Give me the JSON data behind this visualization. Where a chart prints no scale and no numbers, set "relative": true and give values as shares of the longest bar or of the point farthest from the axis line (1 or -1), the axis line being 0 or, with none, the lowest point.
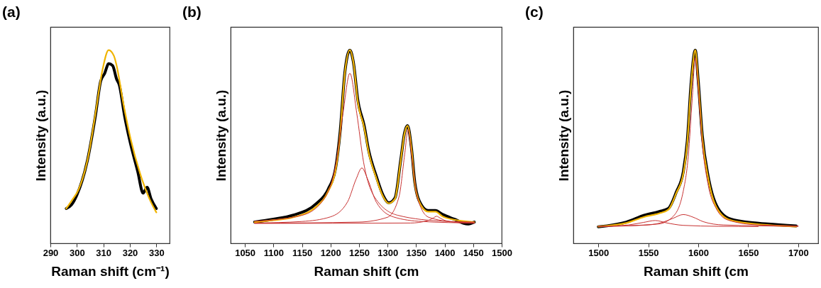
{
  "chart_data": [
    {
      "type": "line",
      "title": "(a)",
      "xlabel": "Raman shift (cm⁻¹)",
      "ylabel": "Intensity (a.u.)",
      "relative": true,
      "xlim": [
        290,
        335
      ],
      "xticks": [
        290,
        300,
        310,
        320,
        330
      ],
      "series": [
        {
          "color": "#000000",
          "x": [
            296,
            298,
            300,
            304,
            307,
            309,
            310.5,
            312,
            313.5,
            315,
            316,
            318,
            320,
            323,
            325,
            326.5,
            328,
            330
          ],
          "values": [
            0.18,
            0.2,
            0.25,
            0.43,
            0.66,
            0.84,
            0.88,
            0.93,
            0.92,
            0.85,
            0.82,
            0.66,
            0.53,
            0.37,
            0.26,
            0.29,
            0.23,
            0.18
          ]
        },
        {
          "color": "#f0b400",
          "x": [
            296,
            298,
            300.7,
            304.3,
            307,
            309.7,
            312,
            314,
            315,
            317.6,
            320.3,
            323.9,
            327.4,
            330
          ],
          "values": [
            0.18,
            0.22,
            0.28,
            0.45,
            0.67,
            0.9,
            1,
            0.97,
            0.92,
            0.72,
            0.54,
            0.36,
            0.23,
            0.16
          ]
        }
      ]
    },
    {
      "type": "line",
      "title": "(b)",
      "xlabel": "Raman shift (cm",
      "ylabel": "Intensity (a.u.)",
      "relative": true,
      "xlim": [
        1025,
        1500
      ],
      "xticks": [
        1050,
        1100,
        1150,
        1200,
        1250,
        1300,
        1350,
        1400,
        1450,
        1500
      ],
      "series": [
        {
          "color": "#000000",
          "x": [
            1067,
            1100,
            1134,
            1175,
            1196,
            1209,
            1217,
            1225,
            1234,
            1240,
            1248,
            1259,
            1267,
            1280,
            1292,
            1302,
            1313,
            1323,
            1330,
            1335,
            1342,
            1348,
            1359,
            1371,
            1384,
            1396,
            1417,
            1440,
            1452
          ],
          "values": [
            0.11,
            0.125,
            0.145,
            0.205,
            0.28,
            0.39,
            0.58,
            0.88,
            1,
            0.94,
            0.74,
            0.61,
            0.48,
            0.35,
            0.25,
            0.21,
            0.235,
            0.43,
            0.575,
            0.61,
            0.49,
            0.31,
            0.2,
            0.17,
            0.17,
            0.15,
            0.125,
            0.1,
            0.11
          ]
        },
        {
          "color": "#f0b400",
          "x": [
            1067,
            1100,
            1134,
            1175,
            1196,
            1209,
            1217,
            1225,
            1234,
            1240,
            1248,
            1259,
            1267,
            1280,
            1292,
            1302,
            1313,
            1323,
            1330,
            1335,
            1342,
            1348,
            1359,
            1371,
            1384,
            1396,
            1417,
            1452
          ],
          "values": [
            0.11,
            0.12,
            0.134,
            0.19,
            0.27,
            0.38,
            0.57,
            0.876,
            1,
            0.94,
            0.73,
            0.6,
            0.47,
            0.34,
            0.243,
            0.207,
            0.231,
            0.426,
            0.572,
            0.608,
            0.486,
            0.304,
            0.195,
            0.164,
            0.164,
            0.14,
            0.122,
            0.11
          ]
        },
        {
          "color": "#c83232",
          "x": [
            1067,
            1150,
            1190,
            1210,
            1222,
            1234,
            1246,
            1258,
            1278,
            1318,
            1400,
            1452
          ],
          "values": [
            0.114,
            0.145,
            0.236,
            0.42,
            0.674,
            0.88,
            0.674,
            0.42,
            0.236,
            0.145,
            0.114,
            0.11
          ]
        },
        {
          "color": "#c83232",
          "x": [
            1067,
            1150,
            1200,
            1230,
            1245,
            1255,
            1265,
            1280,
            1310,
            1360,
            1452
          ],
          "values": [
            0.105,
            0.113,
            0.137,
            0.215,
            0.333,
            0.39,
            0.333,
            0.215,
            0.137,
            0.113,
            0.105
          ]
        },
        {
          "color": "#c83232",
          "x": [
            1067,
            1250,
            1300,
            1320,
            1330,
            1336,
            1342,
            1352,
            1372,
            1420,
            1452
          ],
          "values": [
            0.104,
            0.11,
            0.135,
            0.24,
            0.46,
            0.59,
            0.46,
            0.24,
            0.135,
            0.11,
            0.107
          ]
        },
        {
          "color": "#c83232",
          "x": [
            1067,
            1340,
            1370,
            1380,
            1386,
            1392,
            1402,
            1430,
            1452
          ],
          "values": [
            0.103,
            0.105,
            0.117,
            0.131,
            0.14,
            0.131,
            0.117,
            0.106,
            0.104
          ]
        }
      ]
    },
    {
      "type": "line",
      "title": "(c)",
      "xlabel": "Raman shift (cm",
      "ylabel": "Intensity (a.u.)",
      "relative": true,
      "xlim": [
        1475,
        1720
      ],
      "xticks": [
        1500,
        1550,
        1600,
        1650,
        1700
      ],
      "series": [
        {
          "color": "#000000",
          "x": [
            1500,
            1528,
            1546,
            1561,
            1570,
            1578,
            1585,
            1589,
            1593,
            1597,
            1600,
            1604,
            1610,
            1617,
            1630,
            1648,
            1670,
            1698
          ],
          "values": [
            0.085,
            0.11,
            0.145,
            0.165,
            0.18,
            0.265,
            0.37,
            0.53,
            0.84,
            1,
            0.84,
            0.56,
            0.345,
            0.21,
            0.13,
            0.11,
            0.1,
            0.09
          ]
        },
        {
          "color": "#f0b400",
          "x": [
            1500,
            1528,
            1546,
            1561,
            1570,
            1578,
            1585,
            1589,
            1593,
            1597,
            1600,
            1604,
            1610,
            1617,
            1630,
            1648,
            1698
          ],
          "values": [
            0.087,
            0.105,
            0.137,
            0.155,
            0.174,
            0.26,
            0.36,
            0.52,
            0.83,
            1,
            0.83,
            0.547,
            0.335,
            0.199,
            0.124,
            0.105,
            0.087
          ]
        },
        {
          "color": "#c83232",
          "x": [
            1500,
            1560,
            1575,
            1585,
            1590,
            1594,
            1597,
            1600,
            1604,
            1610,
            1618,
            1630,
            1660,
            1700
          ],
          "values": [
            0.087,
            0.1,
            0.14,
            0.27,
            0.45,
            0.75,
            0.96,
            0.8,
            0.52,
            0.3,
            0.18,
            0.12,
            0.095,
            0.09
          ]
        },
        {
          "color": "#c83232",
          "x": [
            1500,
            1550,
            1565,
            1575,
            1585,
            1595,
            1605,
            1625,
            1700
          ],
          "values": [
            0.087,
            0.095,
            0.11,
            0.13,
            0.149,
            0.135,
            0.112,
            0.095,
            0.088
          ]
        },
        {
          "color": "#c83232",
          "x": [
            1515,
            1530,
            1545,
            1557,
            1568,
            1585,
            1620,
            1660
          ],
          "values": [
            0.09,
            0.095,
            0.108,
            0.118,
            0.106,
            0.093,
            0.088,
            0.087
          ]
        }
      ]
    }
  ]
}
